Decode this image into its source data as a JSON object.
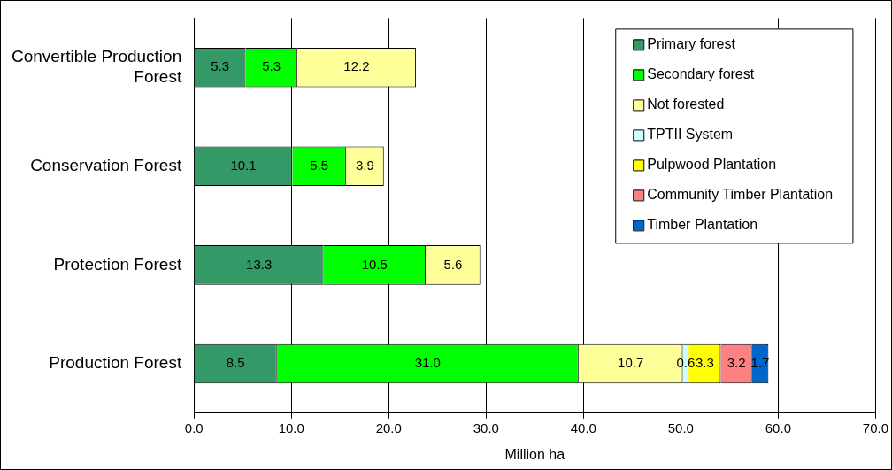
{
  "chart_data": {
    "type": "bar",
    "orientation": "horizontal",
    "stacked": true,
    "xlabel": "Million ha",
    "categories": [
      "Convertible Production Forest",
      "Conservation Forest",
      "Protection Forest",
      "Production Forest"
    ],
    "series": [
      {
        "name": "Primary forest",
        "color": "#339966",
        "values": [
          5.3,
          10.1,
          13.3,
          8.5
        ],
        "value_labels": [
          "5.3",
          "10.1",
          "13.3",
          "8.5"
        ]
      },
      {
        "name": "Secondary forest",
        "color": "#00ff00",
        "values": [
          5.3,
          5.5,
          10.5,
          31.0
        ],
        "value_labels": [
          "5.3",
          "5.5",
          "10.5",
          "31.0"
        ]
      },
      {
        "name": "Not forested",
        "color": "#ffff99",
        "values": [
          12.2,
          3.9,
          5.6,
          10.7
        ],
        "value_labels": [
          "12.2",
          "3.9",
          "5.6",
          "10.7"
        ]
      },
      {
        "name": "TPTII System",
        "color": "#ccffff",
        "values": [
          null,
          null,
          null,
          0.6
        ],
        "value_labels": [
          null,
          null,
          null,
          "0.6"
        ]
      },
      {
        "name": "Pulpwood Plantation",
        "color": "#ffff00",
        "values": [
          null,
          null,
          null,
          3.3
        ],
        "value_labels": [
          null,
          null,
          null,
          "3.3"
        ]
      },
      {
        "name": "Community Timber Plantation",
        "color": "#ff8080",
        "values": [
          null,
          null,
          null,
          3.2
        ],
        "value_labels": [
          null,
          null,
          null,
          "3.2"
        ]
      },
      {
        "name": "Timber Plantation",
        "color": "#0066cc",
        "values": [
          null,
          null,
          null,
          1.7
        ],
        "value_labels": [
          null,
          null,
          null,
          "1.7"
        ]
      }
    ],
    "xlim": [
      0,
      70
    ],
    "xticks": [
      {
        "value": 0,
        "label": "0.0"
      },
      {
        "value": 10,
        "label": "10.0"
      },
      {
        "value": 20,
        "label": "20.0"
      },
      {
        "value": 30,
        "label": "30.0"
      },
      {
        "value": 40,
        "label": "40.0"
      },
      {
        "value": 50,
        "label": "50.0"
      },
      {
        "value": 60,
        "label": "60.0"
      },
      {
        "value": 70,
        "label": "70.0"
      }
    ],
    "grid": "x",
    "legend": "top right"
  }
}
